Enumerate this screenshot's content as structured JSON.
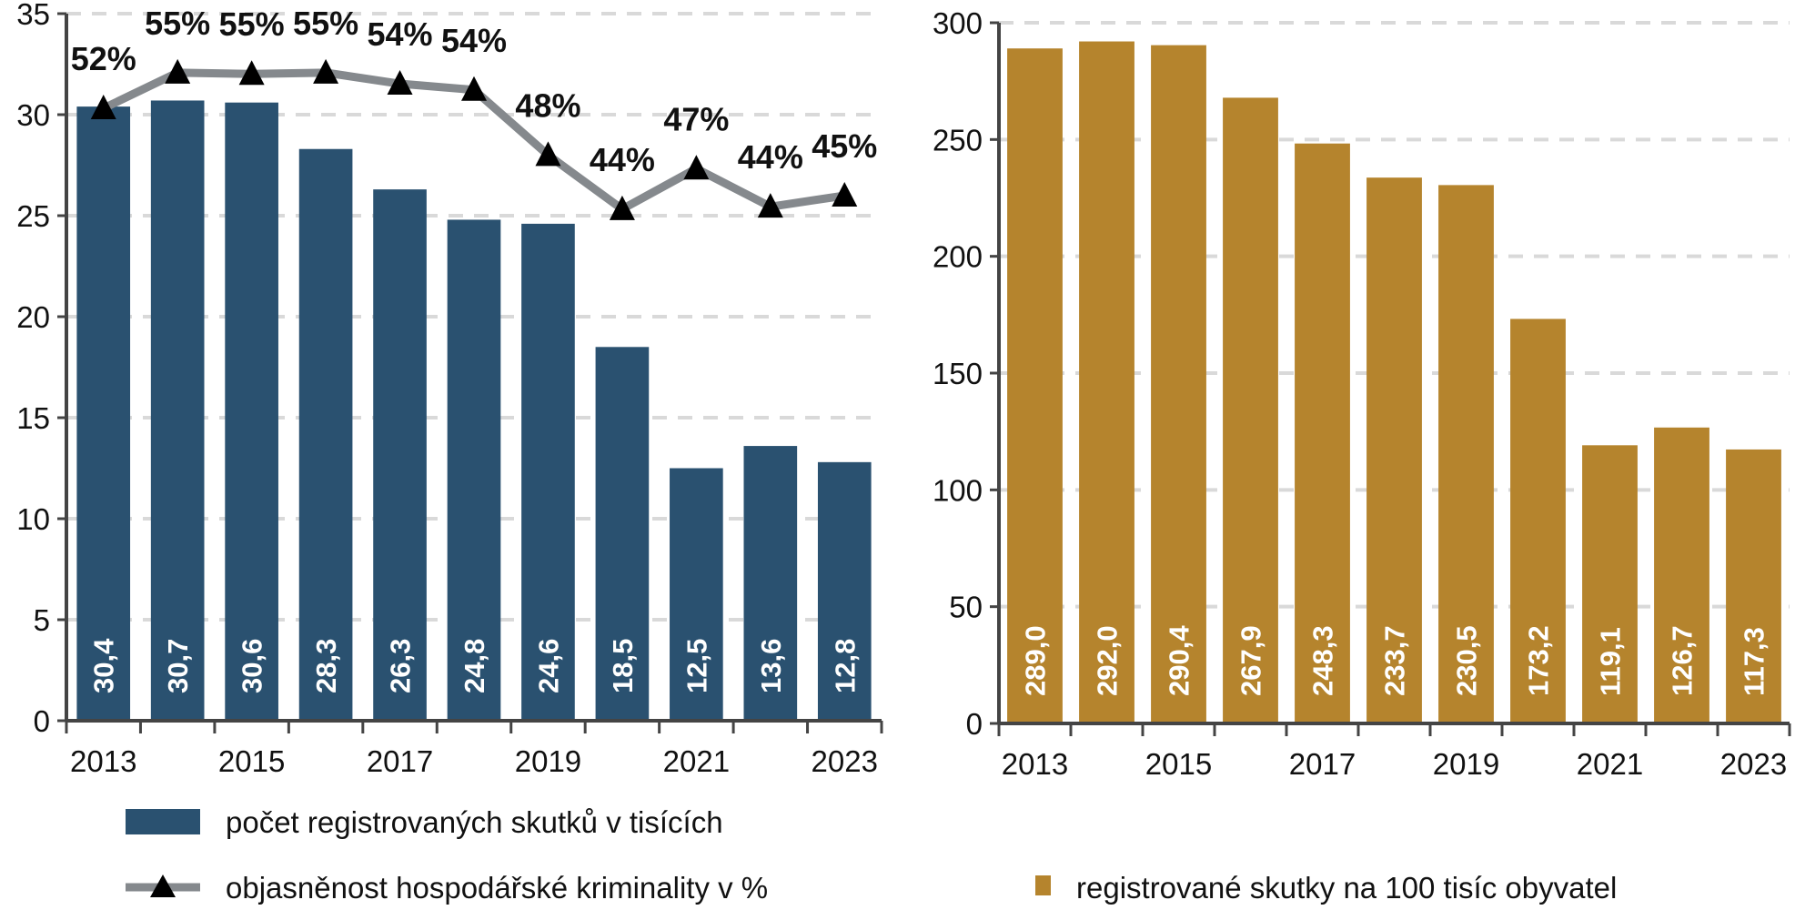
{
  "chart_data": [
    {
      "type": "bar",
      "categories": [
        "2013",
        "2014",
        "2015",
        "2016",
        "2017",
        "2018",
        "2019",
        "2020",
        "2021",
        "2022",
        "2023"
      ],
      "x_tick_labels": [
        "2013",
        "2015",
        "2017",
        "2019",
        "2021",
        "2023"
      ],
      "ylim": [
        0,
        35
      ],
      "y_ticks": [
        0,
        5,
        10,
        15,
        20,
        25,
        30,
        35
      ],
      "grid": true,
      "series": [
        {
          "name": "počet registrovaných skutků v tisících",
          "type": "bar",
          "color": "#2a5170",
          "values": [
            30.4,
            30.7,
            30.6,
            28.3,
            26.3,
            24.8,
            24.6,
            18.5,
            12.5,
            13.6,
            12.8
          ],
          "labels": [
            "30,4",
            "30,7",
            "30,6",
            "28,3",
            "26,3",
            "24,8",
            "24,6",
            "18,5",
            "12,5",
            "13,6",
            "12,8"
          ]
        },
        {
          "name": "objasněnost hospodářské kriminality v %",
          "type": "line",
          "marker": "triangle",
          "color": "#85898d",
          "secondary_axis_hidden": true,
          "secondary_ylim": [
            2.5,
            60
          ],
          "values": [
            52.3,
            55.2,
            55.1,
            55.2,
            54.3,
            53.8,
            48.5,
            44.1,
            47.4,
            44.3,
            45.2
          ],
          "labels": [
            "52%",
            "55%",
            "55%",
            "55%",
            "54%",
            "54%",
            "48%",
            "44%",
            "47%",
            "44%",
            "45%"
          ]
        }
      ],
      "legend": "bottom"
    },
    {
      "type": "bar",
      "categories": [
        "2013",
        "2014",
        "2015",
        "2016",
        "2017",
        "2018",
        "2019",
        "2020",
        "2021",
        "2022",
        "2023"
      ],
      "x_tick_labels": [
        "2013",
        "2015",
        "2017",
        "2019",
        "2021",
        "2023"
      ],
      "ylim": [
        0,
        300
      ],
      "y_ticks": [
        0,
        50,
        100,
        150,
        200,
        250,
        300
      ],
      "grid": true,
      "series": [
        {
          "name": "registrované skutky na 100 tisíc obyvatel",
          "type": "bar",
          "color": "#b5842d",
          "values": [
            289.0,
            292.0,
            290.4,
            267.9,
            248.3,
            233.7,
            230.5,
            173.2,
            119.1,
            126.7,
            117.3
          ],
          "labels": [
            "289,0",
            "292,0",
            "290,4",
            "267,9",
            "248,3",
            "233,7",
            "230,5",
            "173,2",
            "119,1",
            "126,7",
            "117,3"
          ]
        }
      ],
      "legend": "bottom"
    }
  ]
}
